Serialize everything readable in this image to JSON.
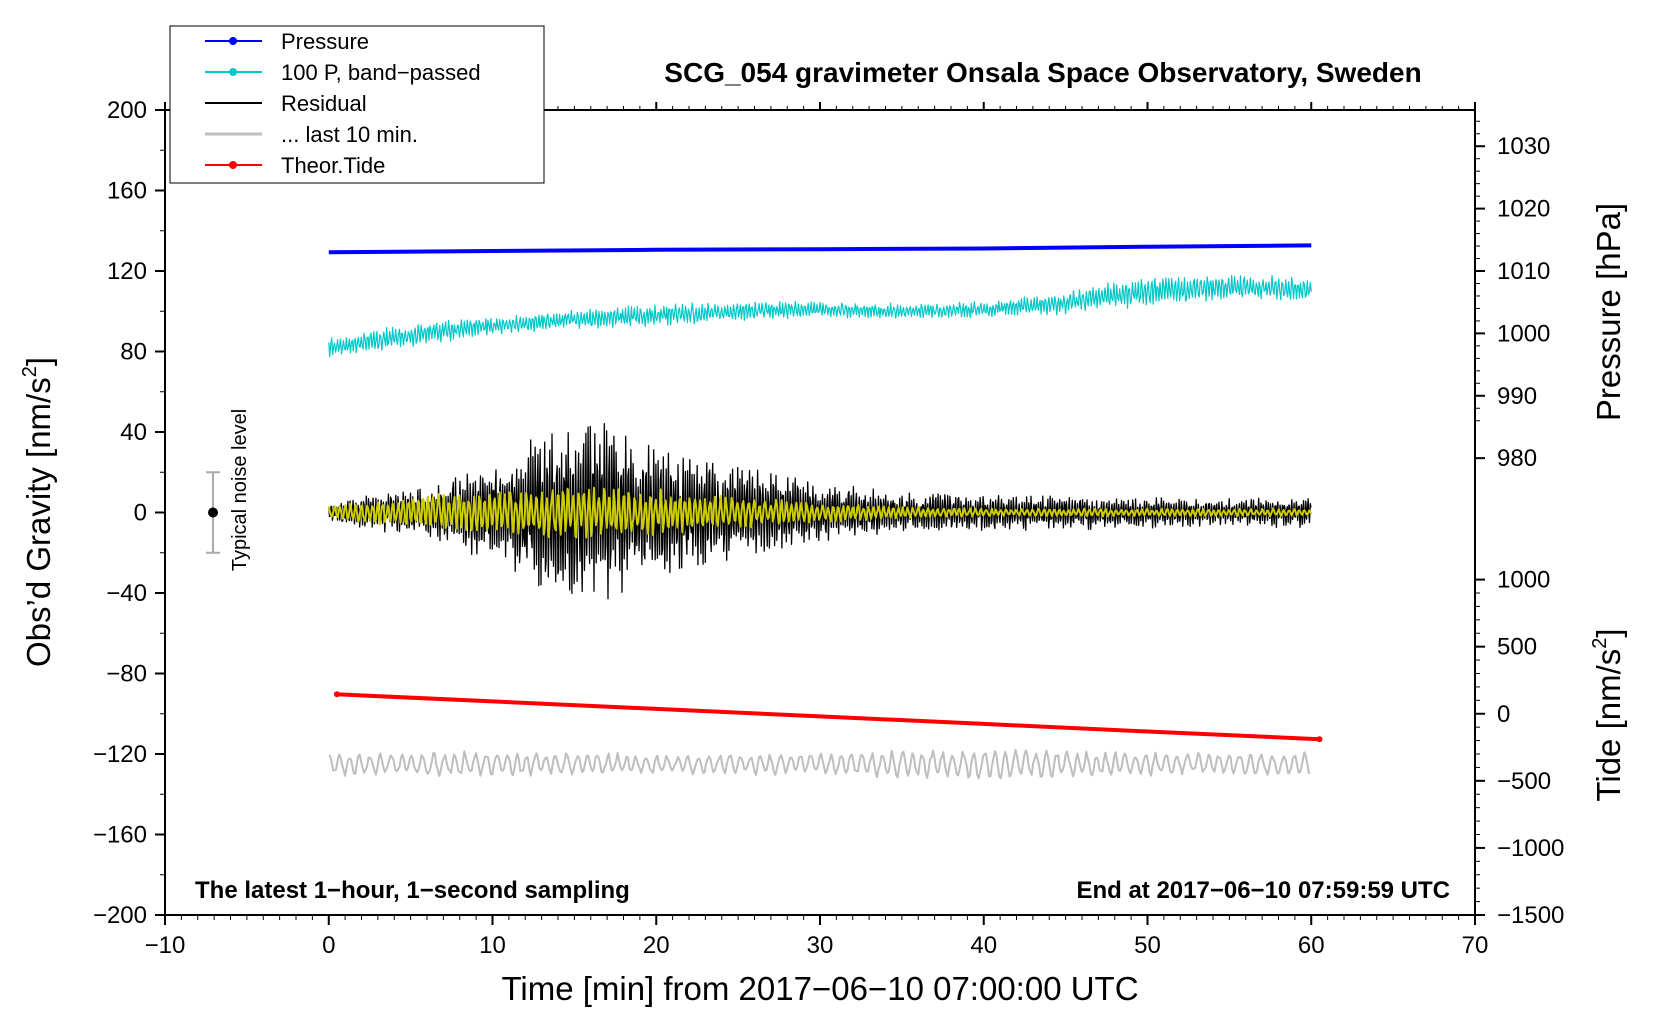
{
  "chart_data": {
    "type": "line",
    "title": "SCG_054 gravimeter Onsala Space Observatory, Sweden",
    "xlabel": "Time [min] from 2017−06−10 07:00:00 UTC",
    "ylabel": "Obs’d Gravity [nm/s",
    "ylabel_sup": "2",
    "ylabel_end": "]",
    "xlim": [
      -10,
      70
    ],
    "ylim": [
      -200,
      200
    ],
    "x_ticks": [
      "−10",
      "0",
      "10",
      "20",
      "30",
      "40",
      "50",
      "60",
      "70"
    ],
    "x_tick_values": [
      -10,
      0,
      10,
      20,
      30,
      40,
      50,
      60,
      70
    ],
    "y_ticks": [
      "200",
      "160",
      "120",
      "80",
      "40",
      "0",
      "−40",
      "−80",
      "−120",
      "−160",
      "−200"
    ],
    "y_tick_values": [
      200,
      160,
      120,
      80,
      40,
      0,
      -40,
      -80,
      -120,
      -160,
      -200
    ],
    "grid": false,
    "legend_position": "top-left",
    "pressure_axis": {
      "label": "Pressure [hPa]",
      "ticks": [
        "1030",
        "1020",
        "1010",
        "1000",
        "990",
        "980"
      ],
      "tick_values": [
        1030,
        1020,
        1010,
        1000,
        990,
        980
      ],
      "gravity_equivalent": {
        "1010": 120,
        "1000": 89
      }
    },
    "tide_axis": {
      "label": "Tide [nm/s",
      "label_sup": "2",
      "label_end": "]",
      "ticks": [
        "1000",
        "500",
        "0",
        "−500",
        "−1000",
        "−1500"
      ],
      "tick_values": [
        1000,
        500,
        0,
        -500,
        -1000,
        -1500
      ],
      "gravity_equivalent": {
        "0": -100,
        "-1500": -200
      }
    },
    "legend": [
      {
        "label": "Pressure",
        "color": "#0000ff",
        "marker": true
      },
      {
        "label": "100 P, band−passed",
        "color": "#00c8c8",
        "marker": true
      },
      {
        "label": "Residual",
        "color": "#000000",
        "marker": false
      },
      {
        "label": "... last 10 min.",
        "color": "#bebebe",
        "marker": false
      },
      {
        "label": "Theor.Tide",
        "color": "#ff0000",
        "marker": true
      }
    ],
    "series": [
      {
        "name": "Pressure",
        "axis": "pressure",
        "color": "#0000ff",
        "x": [
          0,
          10,
          20,
          30,
          40,
          50,
          60
        ],
        "values": [
          1013.0,
          1013.2,
          1013.4,
          1013.5,
          1013.6,
          1013.9,
          1014.1
        ]
      },
      {
        "name": "100 P, band−passed",
        "axis": "gravity",
        "color": "#00c8c8",
        "x": [
          0,
          5,
          10,
          15,
          20,
          25,
          30,
          35,
          40,
          45,
          50,
          55,
          60
        ],
        "values": [
          82,
          88,
          93,
          96,
          98,
          100,
          101,
          100,
          101,
          104,
          110,
          112,
          111
        ],
        "amplitude": [
          5,
          6,
          5,
          5,
          6,
          5,
          4,
          4,
          4,
          6,
          8,
          7,
          6
        ]
      },
      {
        "name": "Residual",
        "axis": "gravity",
        "color": "#000000",
        "x": [
          0,
          5,
          10,
          15,
          20,
          25,
          30,
          35,
          40,
          45,
          50,
          55,
          60
        ],
        "values": [
          0,
          0,
          0,
          0,
          0,
          0,
          0,
          0,
          0,
          0,
          0,
          0,
          0
        ],
        "amplitude": [
          5,
          12,
          25,
          50,
          35,
          25,
          15,
          10,
          10,
          9,
          8,
          7,
          8
        ]
      },
      {
        "name": "Residual band−passed",
        "axis": "gravity",
        "color": "#cccc00",
        "x": [
          0,
          5,
          10,
          15,
          20,
          25,
          30,
          35,
          40,
          45,
          50,
          55,
          60
        ],
        "values": [
          0,
          0,
          0,
          0,
          0,
          0,
          0,
          0,
          0,
          0,
          0,
          0,
          0
        ],
        "amplitude": [
          3,
          8,
          12,
          14,
          12,
          8,
          5,
          3,
          2,
          2,
          2,
          2,
          2
        ]
      },
      {
        "name": "... last 10 min.",
        "axis": "gravity",
        "color": "#bebebe",
        "x": [
          0,
          10,
          20,
          30,
          40,
          50,
          60
        ],
        "values": [
          -125,
          -125,
          -125,
          -125,
          -125,
          -125,
          -125
        ],
        "amplitude": [
          6,
          7,
          5,
          6,
          8,
          6,
          6
        ]
      },
      {
        "name": "Theor.Tide",
        "axis": "tide",
        "color": "#ff0000",
        "x": [
          0.5,
          10,
          20,
          30,
          40,
          50,
          60.5
        ],
        "values": [
          145,
          92,
          36,
          -20,
          -76,
          -132,
          -190
        ]
      }
    ],
    "annotations": {
      "left": "The latest 1−hour, 1−second sampling",
      "right": "End at 2017−06−10 07:59:59 UTC",
      "noise": "Typical noise level",
      "noise_range": [
        -20,
        20
      ]
    }
  }
}
